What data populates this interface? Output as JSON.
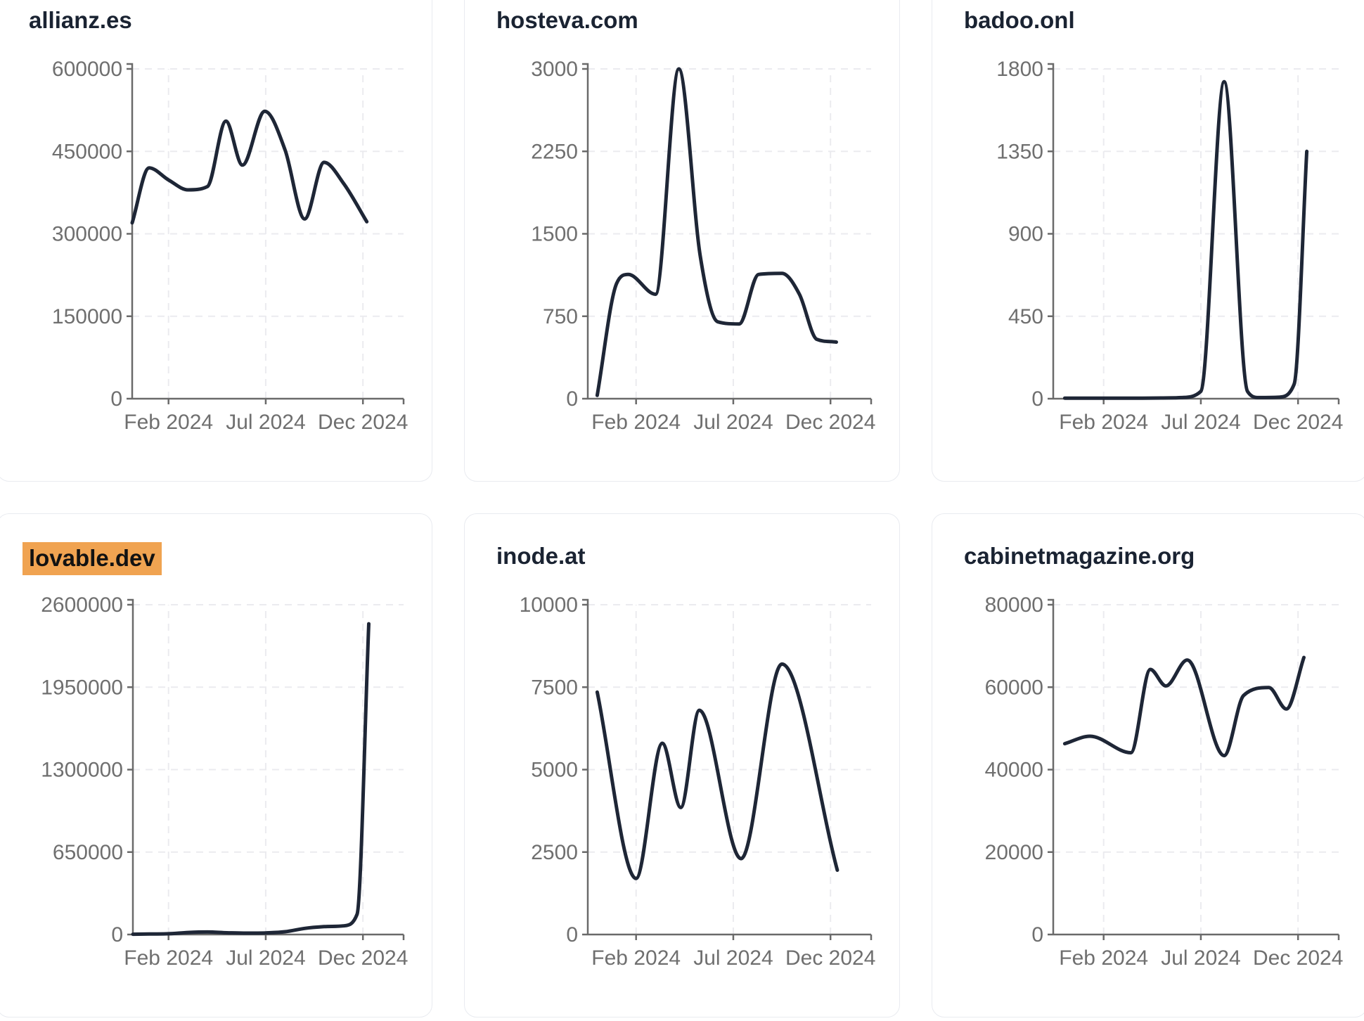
{
  "style": {
    "background": "#ffffff",
    "card_border": "#e9ebf0",
    "title_color": "#1a2332",
    "highlight_color": "#f0a351",
    "highlight_text_color": "#121212",
    "line_color": "#1e2636",
    "axis_color": "#6a6a6a",
    "grid_color": "#ebebef",
    "tick_text_color": "#6f6f6f"
  },
  "chart_data": [
    {
      "type": "line",
      "title": "allianz.es",
      "title_highlighted": false,
      "ylim": [
        0,
        600000
      ],
      "y_ticks": [
        600000,
        450000,
        300000,
        150000,
        0
      ],
      "x_tick_labels": [
        "Feb 2024",
        "Jul 2024",
        "Dec 2024"
      ],
      "x_tick_months": [
        2,
        7,
        12
      ],
      "grid": true,
      "axis_x": 192,
      "points": [
        [
          0,
          320000
        ],
        [
          1,
          420000
        ],
        [
          2,
          398000
        ],
        [
          3,
          380000
        ],
        [
          4,
          386000
        ],
        [
          4.95,
          505000
        ],
        [
          5.8,
          425000
        ],
        [
          6.95,
          523000
        ],
        [
          8,
          452000
        ],
        [
          9,
          327000
        ],
        [
          10,
          430000
        ],
        [
          11,
          392000
        ],
        [
          12.2,
          322000
        ]
      ]
    },
    {
      "type": "line",
      "title": "hosteva.com",
      "title_highlighted": false,
      "ylim": [
        0,
        3000
      ],
      "y_ticks": [
        3000,
        2250,
        1500,
        750,
        0
      ],
      "x_tick_labels": [
        "Feb 2024",
        "Jul 2024",
        "Dec 2024"
      ],
      "x_tick_months": [
        2,
        7,
        12
      ],
      "grid": true,
      "axis_x": 175,
      "points": [
        [
          0,
          30
        ],
        [
          1,
          1050
        ],
        [
          1.6,
          1130
        ],
        [
          3,
          950
        ],
        [
          4.2,
          3000
        ],
        [
          5.3,
          1300
        ],
        [
          6.2,
          700
        ],
        [
          7.3,
          680
        ],
        [
          8.3,
          1130
        ],
        [
          9.5,
          1140
        ],
        [
          10.4,
          950
        ],
        [
          11.3,
          540
        ],
        [
          12.3,
          515
        ]
      ]
    },
    {
      "type": "line",
      "title": "badoo.onl",
      "title_highlighted": false,
      "ylim": [
        0,
        1800
      ],
      "y_ticks": [
        1800,
        1350,
        900,
        450,
        0
      ],
      "x_tick_labels": [
        "Feb 2024",
        "Jul 2024",
        "Dec 2024"
      ],
      "x_tick_months": [
        2,
        7,
        12
      ],
      "grid": true,
      "axis_x": 172,
      "points": [
        [
          0,
          3
        ],
        [
          1,
          3
        ],
        [
          2,
          3
        ],
        [
          3,
          3
        ],
        [
          4,
          3
        ],
        [
          5,
          4
        ],
        [
          6,
          6
        ],
        [
          7,
          40
        ],
        [
          8.2,
          1730
        ],
        [
          9.4,
          40
        ],
        [
          10,
          6
        ],
        [
          11,
          8
        ],
        [
          11.8,
          80
        ],
        [
          12.45,
          1350
        ]
      ]
    },
    {
      "type": "line",
      "title": "lovable.dev",
      "title_highlighted": true,
      "ylim": [
        0,
        2600000
      ],
      "y_ticks": [
        2600000,
        1950000,
        1300000,
        650000,
        0
      ],
      "x_tick_labels": [
        "Feb 2024",
        "Jul 2024",
        "Dec 2024"
      ],
      "x_tick_months": [
        2,
        7,
        12
      ],
      "grid": true,
      "axis_x": 193,
      "points": [
        [
          0,
          2000
        ],
        [
          1,
          4000
        ],
        [
          2,
          6000
        ],
        [
          3,
          16000
        ],
        [
          4,
          20000
        ],
        [
          5,
          14000
        ],
        [
          6,
          11000
        ],
        [
          7,
          13000
        ],
        [
          8,
          22000
        ],
        [
          9,
          48000
        ],
        [
          10,
          62000
        ],
        [
          11,
          68000
        ],
        [
          11.7,
          160000
        ],
        [
          12.3,
          2450000
        ]
      ]
    },
    {
      "type": "line",
      "title": "inode.at",
      "title_highlighted": false,
      "ylim": [
        0,
        10000
      ],
      "y_ticks": [
        10000,
        7500,
        5000,
        2500,
        0
      ],
      "x_tick_labels": [
        "Feb 2024",
        "Jul 2024",
        "Dec 2024"
      ],
      "x_tick_months": [
        2,
        7,
        12
      ],
      "grid": true,
      "axis_x": 175,
      "points": [
        [
          0,
          7350
        ],
        [
          2,
          1700
        ],
        [
          3.35,
          5800
        ],
        [
          4.3,
          3850
        ],
        [
          5.25,
          6800
        ],
        [
          7.4,
          2300
        ],
        [
          9.5,
          8200
        ],
        [
          12.35,
          1950
        ]
      ]
    },
    {
      "type": "line",
      "title": "cabinetmagazine.org",
      "title_highlighted": false,
      "ylim": [
        0,
        80000
      ],
      "y_ticks": [
        80000,
        60000,
        40000,
        20000,
        0
      ],
      "x_tick_labels": [
        "Feb 2024",
        "Jul 2024",
        "Dec 2024"
      ],
      "x_tick_months": [
        2,
        7,
        12
      ],
      "grid": true,
      "axis_x": 172,
      "points": [
        [
          0,
          46300
        ],
        [
          1.3,
          48100
        ],
        [
          3.4,
          44100
        ],
        [
          4.4,
          64300
        ],
        [
          5.2,
          60300
        ],
        [
          6.3,
          66600
        ],
        [
          8.2,
          43400
        ],
        [
          9.2,
          58000
        ],
        [
          10.5,
          59900
        ],
        [
          11.4,
          54700
        ],
        [
          12.3,
          67200
        ]
      ]
    }
  ]
}
